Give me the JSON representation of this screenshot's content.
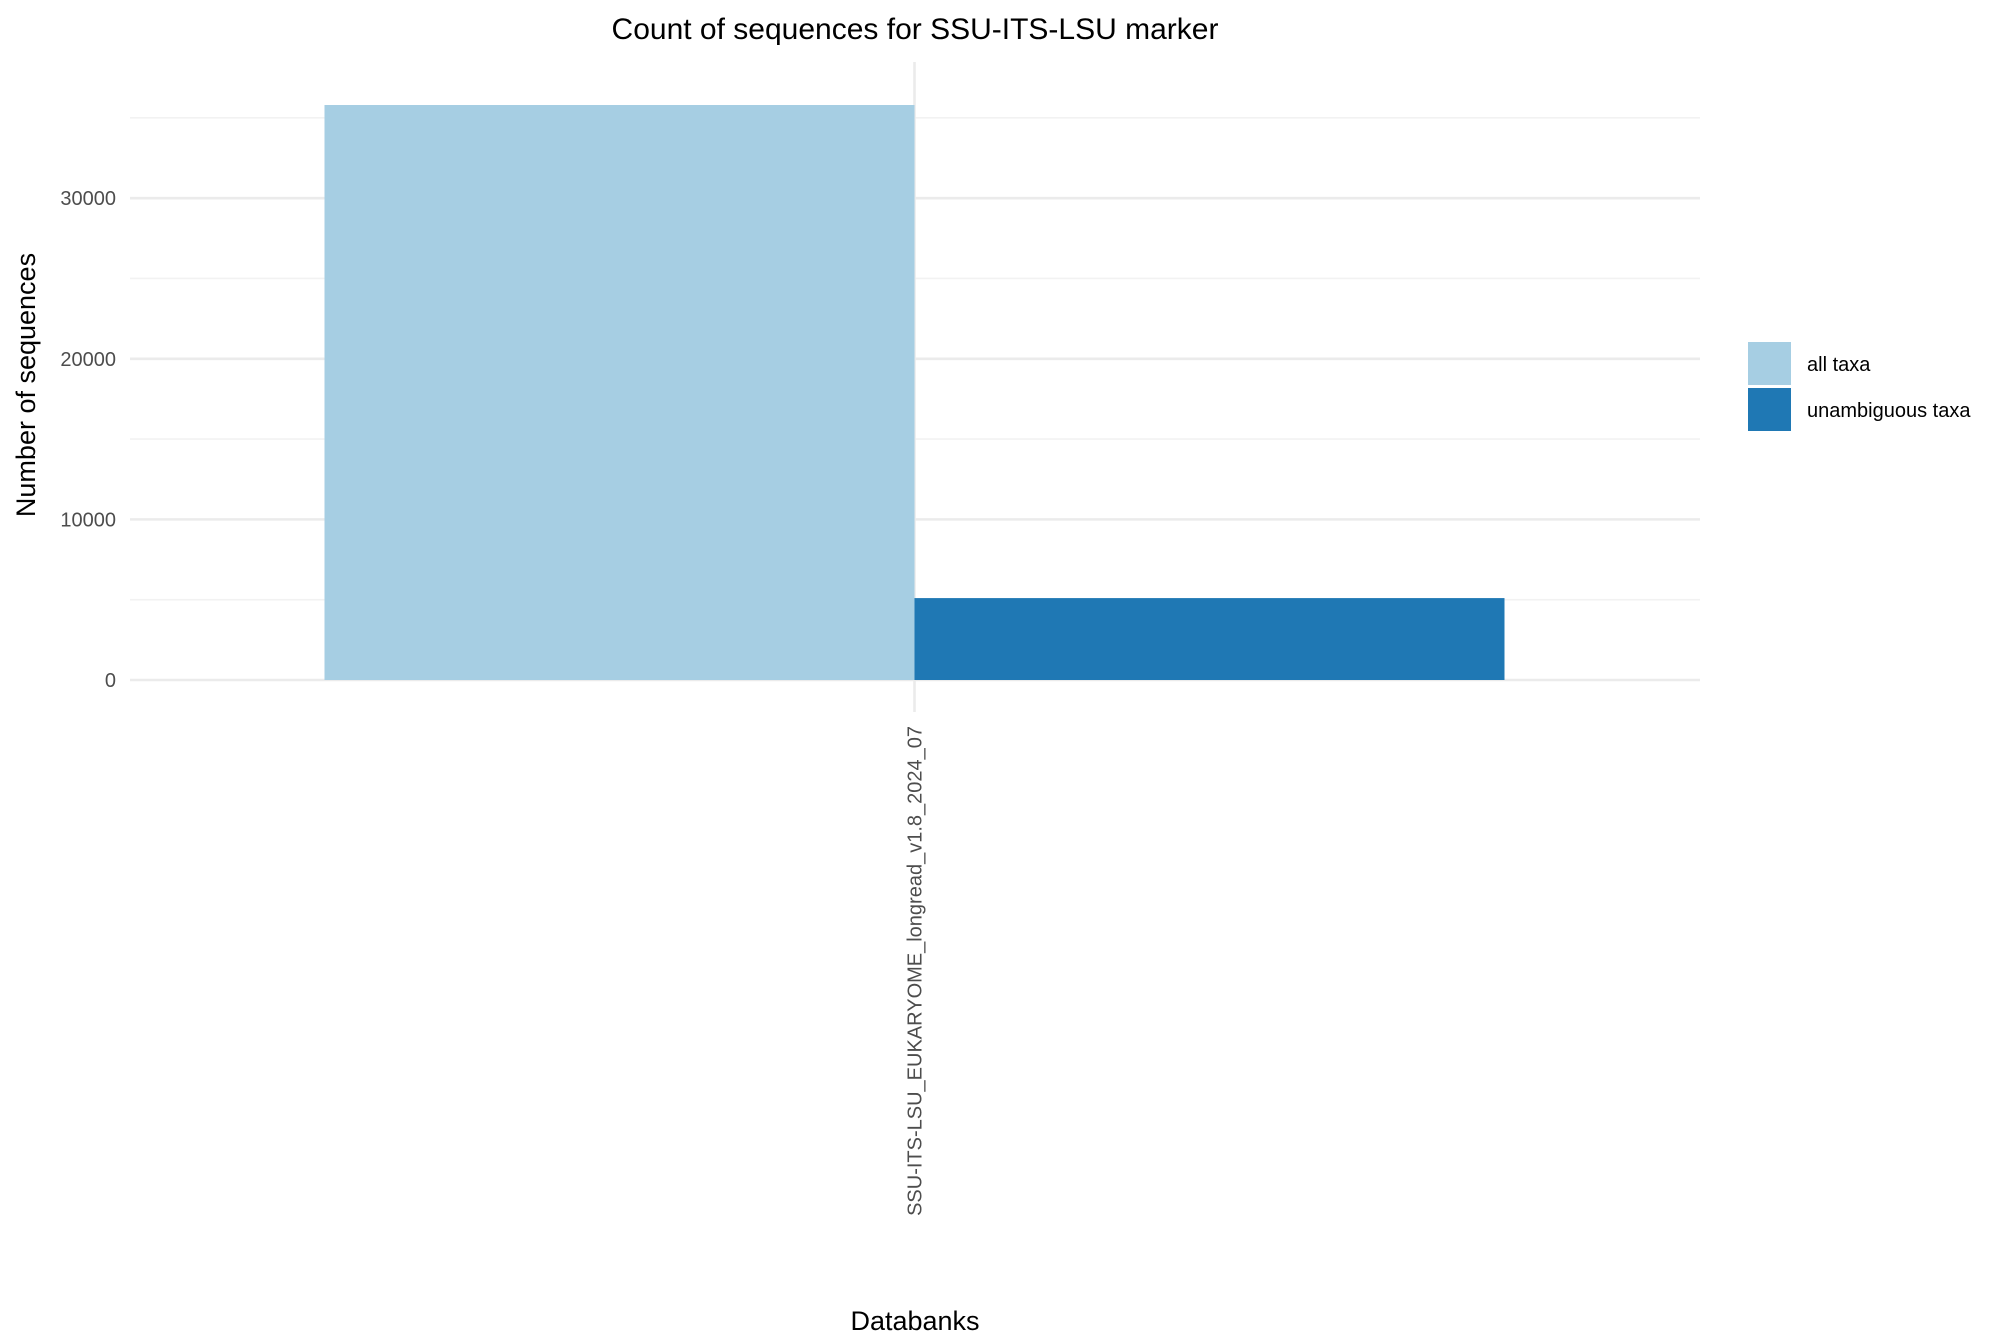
{
  "chart_data": {
    "type": "bar",
    "title": "Count of sequences for SSU-ITS-LSU marker",
    "xlabel": "Databanks",
    "ylabel": "Number of sequences",
    "categories": [
      "SSU-ITS-LSU_EUKARYOME_longread_v1.8_2024_07"
    ],
    "series": [
      {
        "name": "all taxa",
        "color": "#a6cee3",
        "values": [
          35800
        ]
      },
      {
        "name": "unambiguous taxa",
        "color": "#1f78b4",
        "values": [
          5100
        ]
      }
    ],
    "ylim": [
      0,
      35800
    ],
    "yticks": [
      0,
      10000,
      20000,
      30000
    ],
    "ytick_labels": [
      "0",
      "10000",
      "20000",
      "30000"
    ],
    "grid": true,
    "legend_position": "right"
  }
}
